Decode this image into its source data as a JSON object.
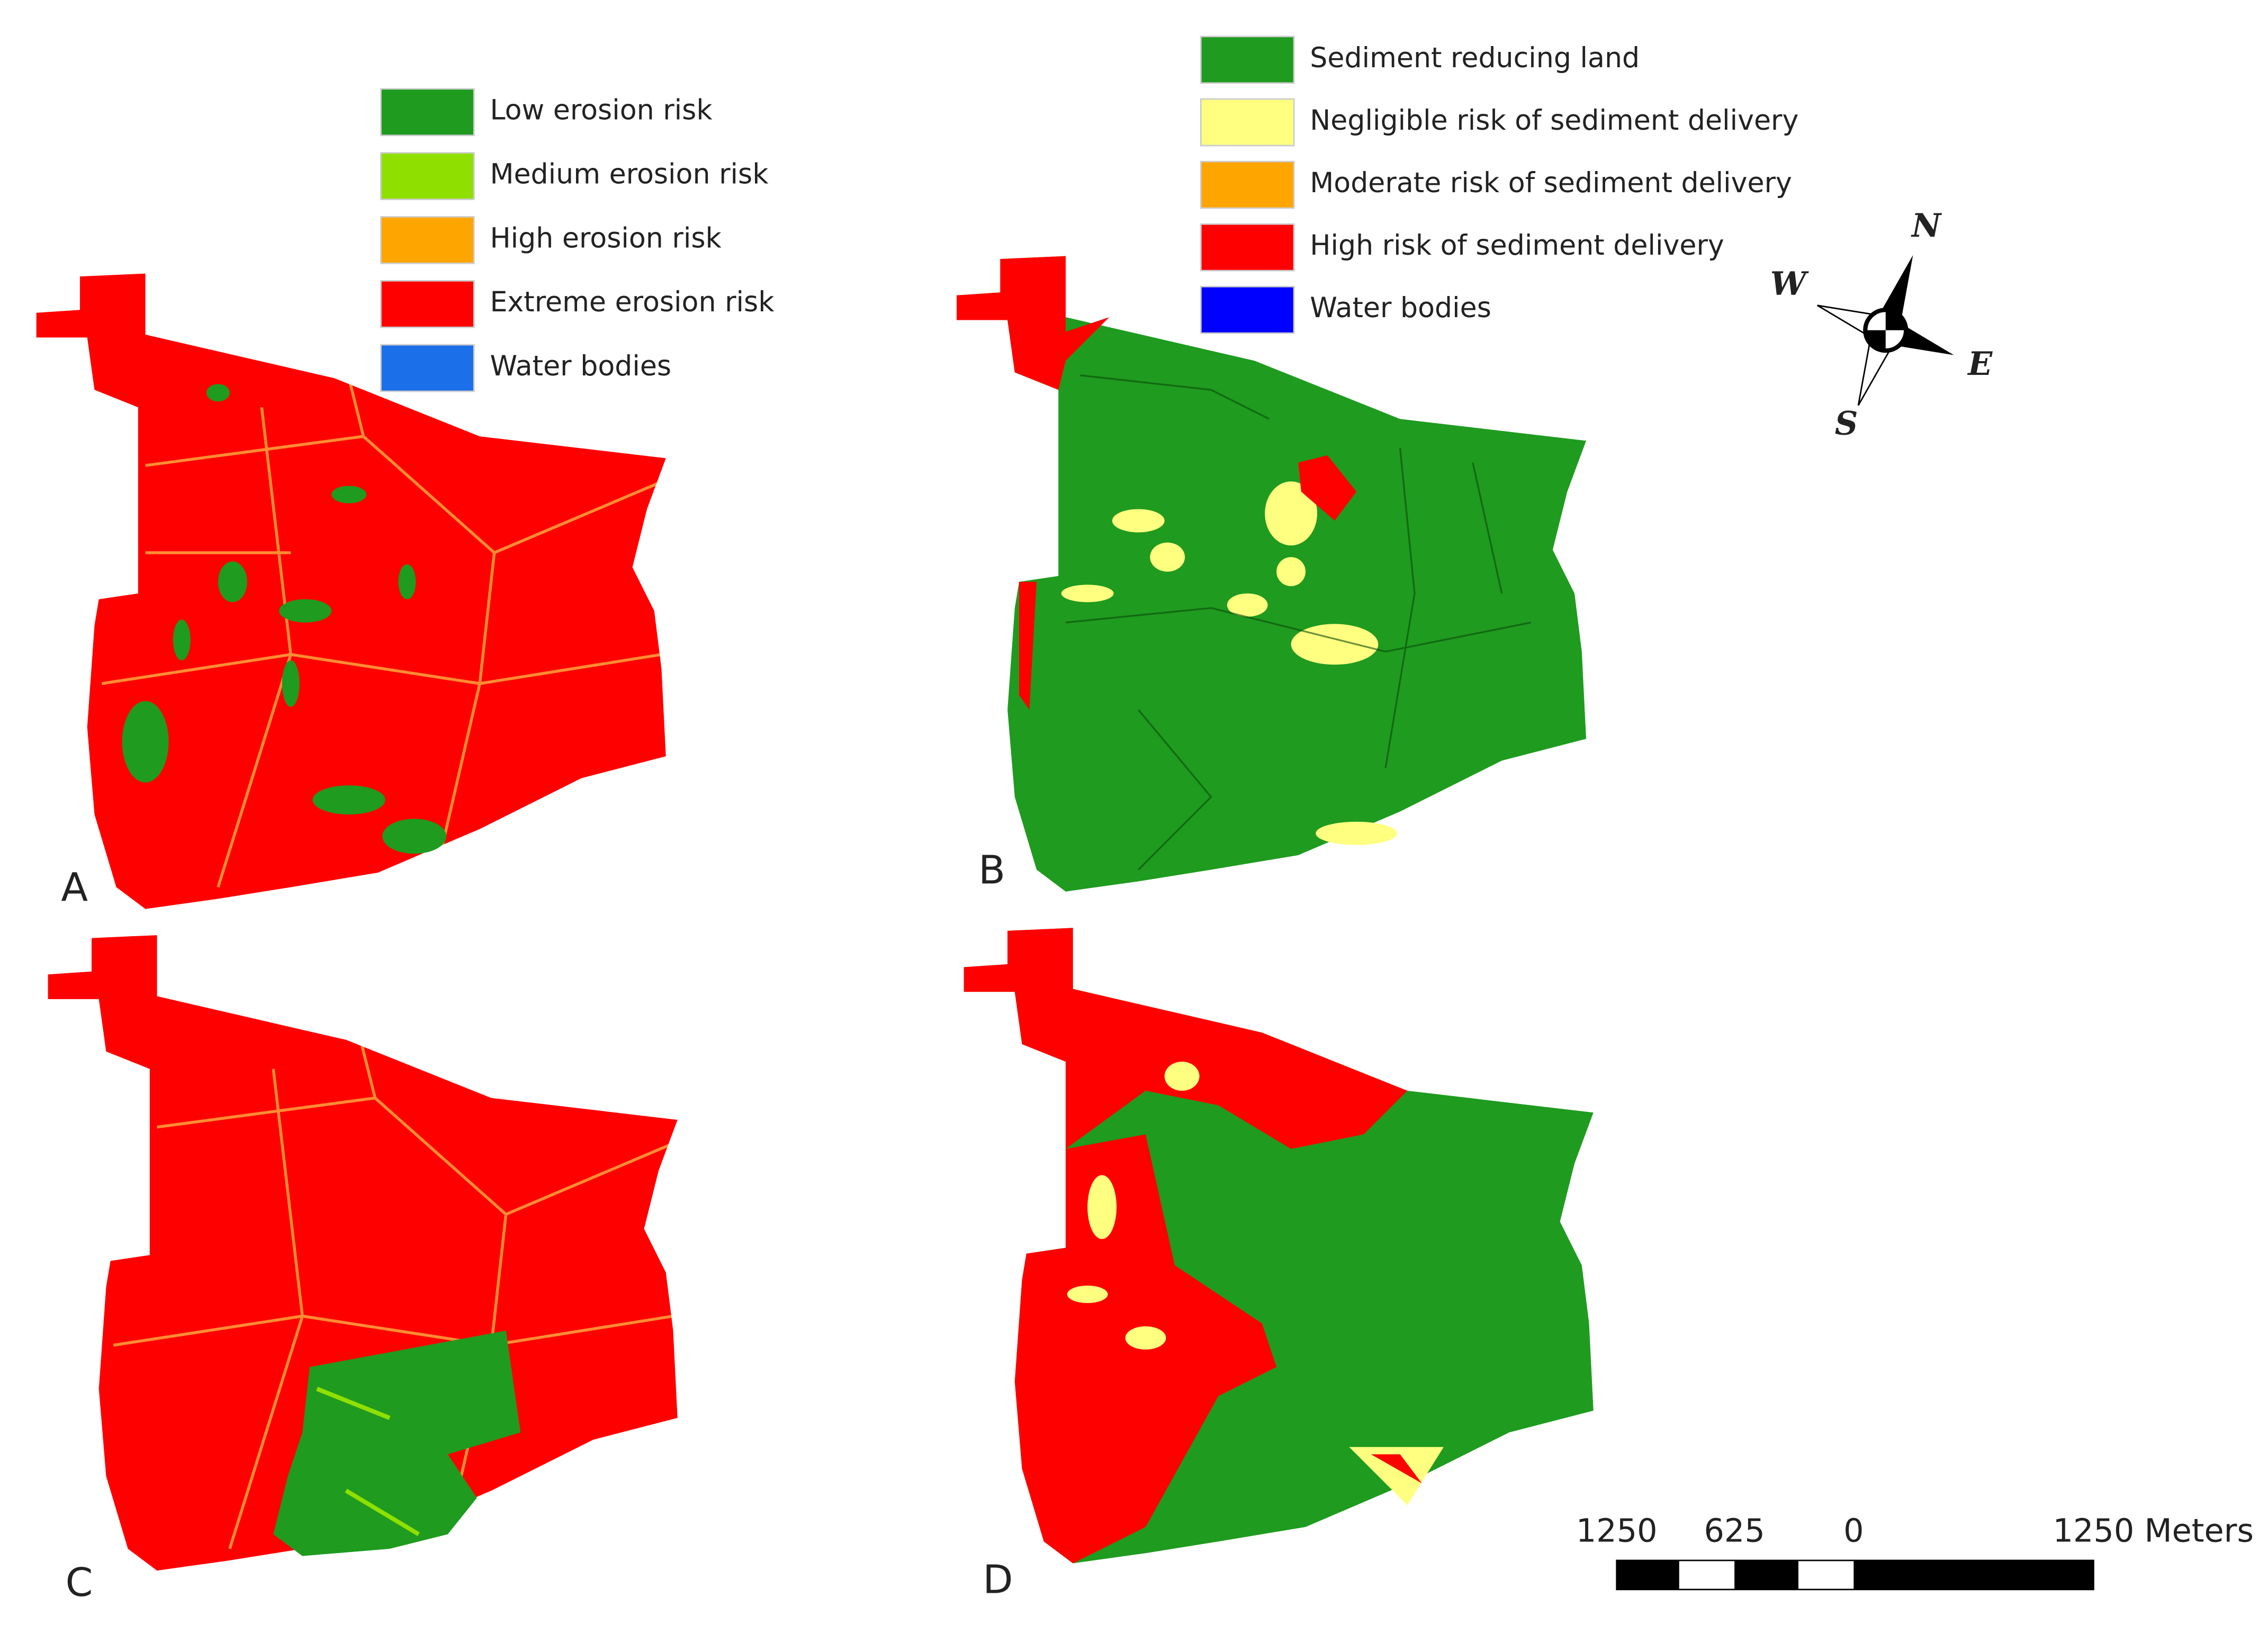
{
  "legend_erosion": {
    "items": [
      {
        "label": "Low erosion risk",
        "color": "#1f9b1f"
      },
      {
        "label": "Medium erosion risk",
        "color": "#8fe000"
      },
      {
        "label": "High erosion risk",
        "color": "#ffa500"
      },
      {
        "label": "Extreme erosion risk",
        "color": "#ff0000"
      },
      {
        "label": "Water bodies",
        "color": "#1b6fe8"
      }
    ]
  },
  "legend_sediment": {
    "items": [
      {
        "label": "Sediment reducing land",
        "color": "#1f9b1f"
      },
      {
        "label": "Negligible risk of sediment delivery",
        "color": "#ffff80"
      },
      {
        "label": "Moderate risk of sediment delivery",
        "color": "#ffa500"
      },
      {
        "label": "High risk of sediment delivery",
        "color": "#ff0000"
      },
      {
        "label": "Water bodies",
        "color": "#0000ff"
      }
    ]
  },
  "panels": [
    "A",
    "B",
    "C",
    "D"
  ],
  "compass": {
    "north": "N",
    "west": "W",
    "east": "E",
    "south": "S"
  },
  "scale_bar": {
    "labels": [
      "1250",
      "625",
      "0",
      "1250 Meters"
    ]
  }
}
